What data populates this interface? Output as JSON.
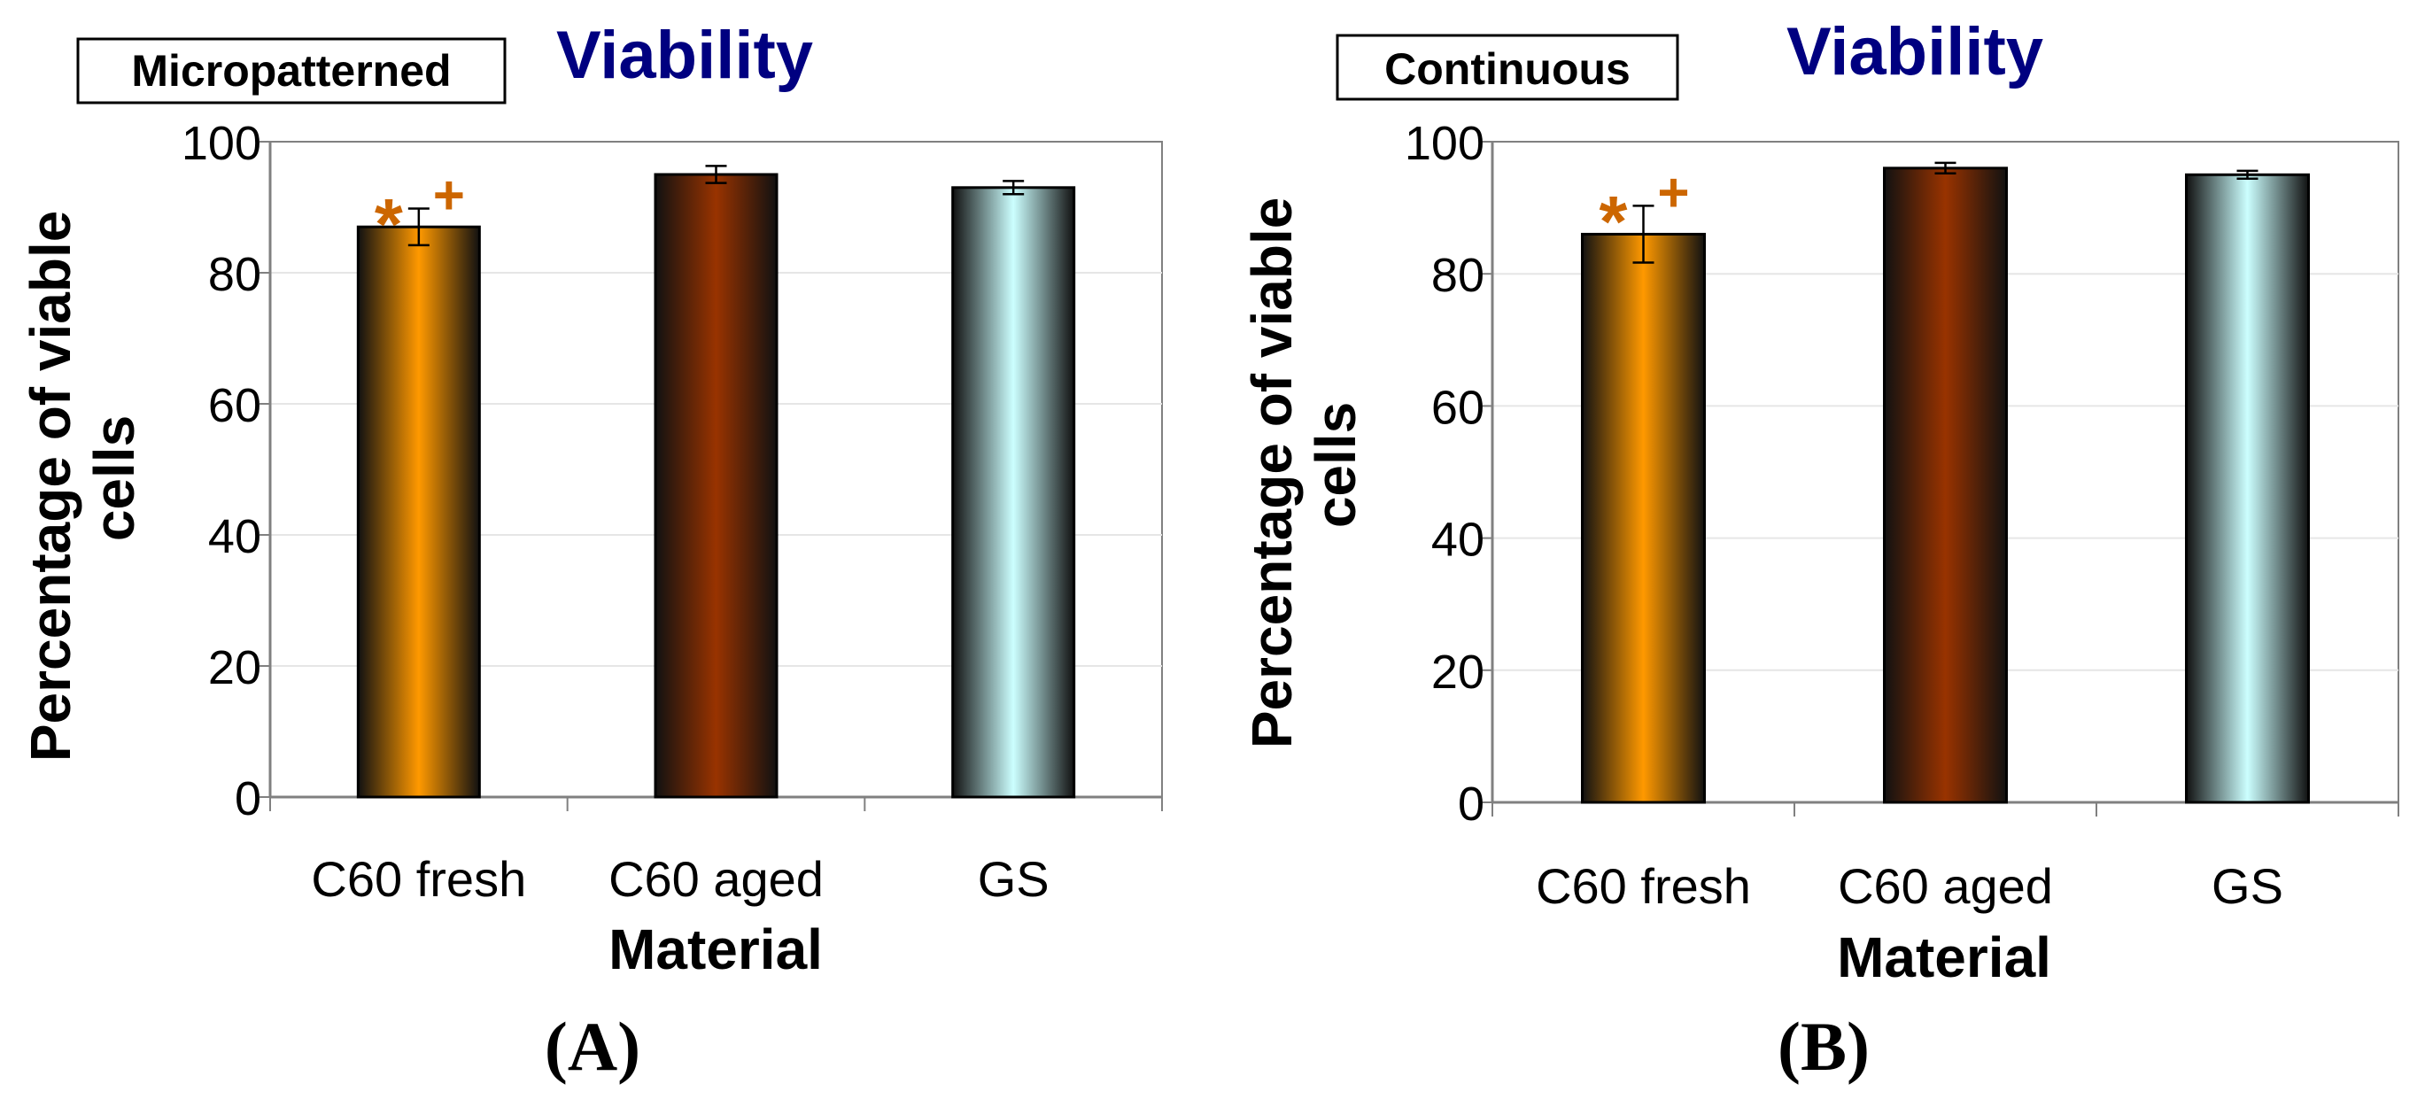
{
  "colors": {
    "title": "#000080",
    "marker": "#CC6600",
    "axis": "#808080",
    "grid": "#E6E6E6",
    "bar_c60_fresh": "#FF9900",
    "bar_c60_aged": "#993300",
    "bar_gs": "#CCFFFF"
  },
  "chart_data": [
    {
      "type": "bar",
      "condition_label": "Micropatterned",
      "title": "Viability",
      "panel_label": "(A)",
      "xlabel": "Material",
      "ylabel": "Percentage of viable cells",
      "ylim": [
        0,
        100
      ],
      "yticks": [
        "0",
        "20",
        "40",
        "60",
        "80",
        "100"
      ],
      "categories": [
        "C60 fresh",
        "C60 aged",
        "GS"
      ],
      "values": [
        87,
        95,
        93
      ],
      "errors": [
        2.8,
        1.3,
        1.0
      ],
      "markers": [
        [
          "*",
          "+"
        ],
        [],
        []
      ],
      "grid": true
    },
    {
      "type": "bar",
      "condition_label": "Continuous",
      "title": "Viability",
      "panel_label": "(B)",
      "xlabel": "Material",
      "ylabel": "Percentage of viable cells",
      "ylim": [
        0,
        100
      ],
      "yticks": [
        "0",
        "20",
        "40",
        "60",
        "80",
        "100"
      ],
      "categories": [
        "C60 fresh",
        "C60 aged",
        "GS"
      ],
      "values": [
        86,
        96,
        95
      ],
      "errors": [
        4.3,
        0.8,
        0.6
      ],
      "markers": [
        [
          "*",
          "+"
        ],
        [],
        []
      ],
      "grid": true
    }
  ]
}
